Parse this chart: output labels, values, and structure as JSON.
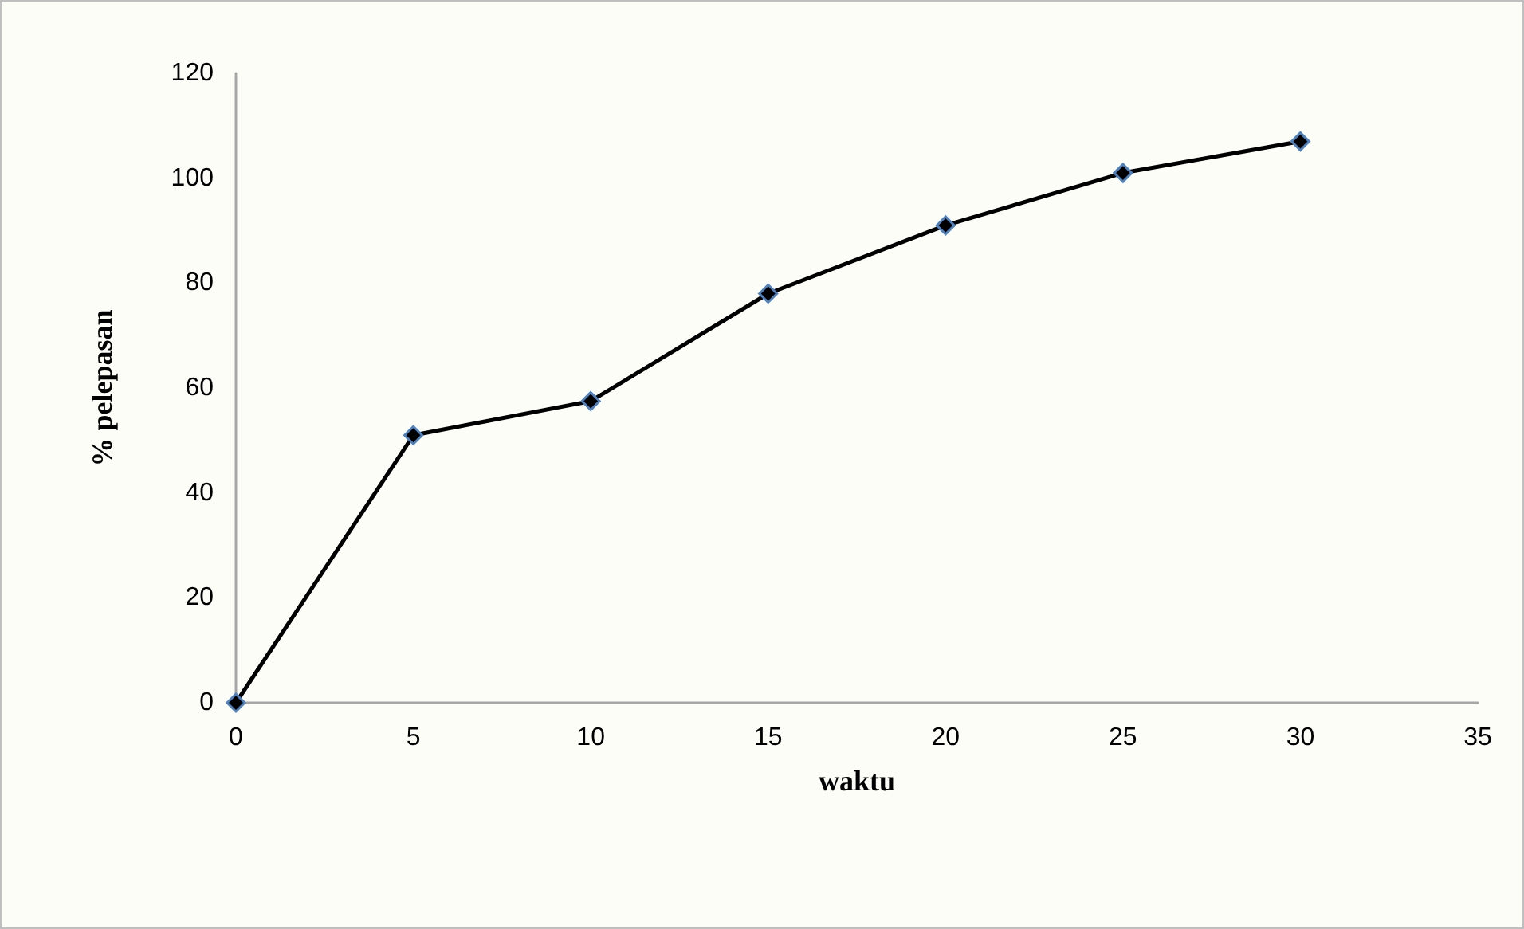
{
  "chart_data": {
    "type": "line",
    "xlabel": "waktu",
    "ylabel": "% pelepasan",
    "x": [
      0,
      5,
      10,
      15,
      20,
      25,
      30
    ],
    "series": [
      {
        "color": "#000000",
        "values": [
          0,
          51,
          57.5,
          78,
          91,
          101,
          107
        ]
      }
    ],
    "xlim": [
      0,
      35
    ],
    "xticks": [
      0,
      5,
      10,
      15,
      20,
      25,
      30,
      35
    ],
    "ylim": [
      0,
      120
    ],
    "yticks": [
      0,
      20,
      40,
      60,
      80,
      100,
      120
    ],
    "grid": false,
    "marker": "diamond",
    "line_style": "solid"
  }
}
